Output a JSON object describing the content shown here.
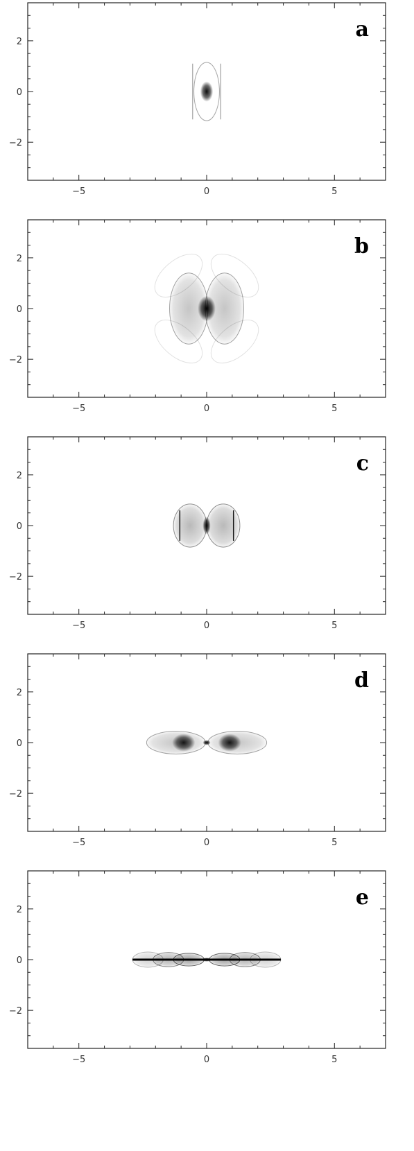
{
  "chart_data": [
    {
      "type": "scatter",
      "panel_label": "a",
      "xlim": [
        -7,
        7
      ],
      "ylim": [
        -3.5,
        3.5
      ],
      "xticks": [
        -5,
        0,
        5
      ],
      "yticks": [
        2,
        0,
        -2
      ],
      "xtick_labels": [
        "−5",
        "0",
        "5"
      ],
      "ytick_labels": [
        "2",
        "0",
        "−2"
      ],
      "grid": false,
      "features": [
        {
          "kind": "outline",
          "cx": 0,
          "cy": 0,
          "rx": 0.5,
          "ry": 1.15,
          "intensity": 0.35
        },
        {
          "kind": "bar",
          "x": -0.55,
          "y0": -1.1,
          "y1": 1.1,
          "intensity": 0.3
        },
        {
          "kind": "bar",
          "x": 0.55,
          "y0": -1.1,
          "y1": 1.1,
          "intensity": 0.3
        },
        {
          "kind": "blob",
          "cx": 0,
          "cy": 0,
          "rx": 0.25,
          "ry": 0.4,
          "intensity": 0.95
        }
      ]
    },
    {
      "type": "scatter",
      "panel_label": "b",
      "xlim": [
        -7,
        7
      ],
      "ylim": [
        -3.5,
        3.5
      ],
      "xticks": [
        -5,
        0,
        5
      ],
      "yticks": [
        2,
        0,
        -2
      ],
      "xtick_labels": [
        "−5",
        "0",
        "5"
      ],
      "ytick_labels": [
        "2",
        "0",
        "−2"
      ],
      "grid": false,
      "features": [
        {
          "kind": "wing",
          "cx": -1.1,
          "cy": 1.3,
          "rx": 1.1,
          "ry": 0.6,
          "angle": -40,
          "intensity": 0.12
        },
        {
          "kind": "wing",
          "cx": 1.1,
          "cy": 1.3,
          "rx": 1.1,
          "ry": 0.6,
          "angle": 40,
          "intensity": 0.12
        },
        {
          "kind": "wing",
          "cx": -1.1,
          "cy": -1.3,
          "rx": 1.1,
          "ry": 0.6,
          "angle": 40,
          "intensity": 0.12
        },
        {
          "kind": "wing",
          "cx": 1.1,
          "cy": -1.3,
          "rx": 1.1,
          "ry": 0.6,
          "angle": -40,
          "intensity": 0.12
        },
        {
          "kind": "lobe",
          "cx": -0.7,
          "cy": 0,
          "rx": 0.75,
          "ry": 1.4,
          "intensity": 0.45
        },
        {
          "kind": "lobe",
          "cx": 0.7,
          "cy": 0,
          "rx": 0.75,
          "ry": 1.4,
          "intensity": 0.45
        },
        {
          "kind": "blob",
          "cx": 0,
          "cy": 0,
          "rx": 0.35,
          "ry": 0.5,
          "intensity": 1.0
        }
      ]
    },
    {
      "type": "scatter",
      "panel_label": "c",
      "xlim": [
        -7,
        7
      ],
      "ylim": [
        -3.5,
        3.5
      ],
      "xticks": [
        -5,
        0,
        5
      ],
      "yticks": [
        2,
        0,
        -2
      ],
      "xtick_labels": [
        "−5",
        "0",
        "5"
      ],
      "ytick_labels": [
        "2",
        "0",
        "−2"
      ],
      "grid": false,
      "features": [
        {
          "kind": "lobe",
          "cx": -0.65,
          "cy": 0,
          "rx": 0.65,
          "ry": 0.85,
          "intensity": 0.55
        },
        {
          "kind": "lobe",
          "cx": 0.65,
          "cy": 0,
          "rx": 0.65,
          "ry": 0.85,
          "intensity": 0.55
        },
        {
          "kind": "bar",
          "x": -1.05,
          "y0": -0.6,
          "y1": 0.6,
          "intensity": 0.9
        },
        {
          "kind": "bar",
          "x": 1.05,
          "y0": -0.6,
          "y1": 0.6,
          "intensity": 0.9
        },
        {
          "kind": "blob",
          "cx": 0,
          "cy": 0,
          "rx": 0.15,
          "ry": 0.35,
          "intensity": 1.0
        }
      ]
    },
    {
      "type": "scatter",
      "panel_label": "d",
      "xlim": [
        -7,
        7
      ],
      "ylim": [
        -3.5,
        3.5
      ],
      "xticks": [
        -5,
        0,
        5
      ],
      "yticks": [
        2,
        0,
        -2
      ],
      "xtick_labels": [
        "−5",
        "0",
        "5"
      ],
      "ytick_labels": [
        "2",
        "0",
        "−2"
      ],
      "grid": false,
      "features": [
        {
          "kind": "lobe",
          "cx": -1.2,
          "cy": 0,
          "rx": 1.15,
          "ry": 0.45,
          "intensity": 0.45
        },
        {
          "kind": "lobe",
          "cx": 1.2,
          "cy": 0,
          "rx": 1.15,
          "ry": 0.45,
          "intensity": 0.45
        },
        {
          "kind": "blob",
          "cx": -0.9,
          "cy": 0,
          "rx": 0.45,
          "ry": 0.35,
          "intensity": 0.9
        },
        {
          "kind": "blob",
          "cx": 0.9,
          "cy": 0,
          "rx": 0.45,
          "ry": 0.35,
          "intensity": 0.9
        },
        {
          "kind": "blob",
          "cx": 0,
          "cy": 0,
          "rx": 0.15,
          "ry": 0.1,
          "intensity": 1.0
        }
      ]
    },
    {
      "type": "scatter",
      "panel_label": "e",
      "xlim": [
        -7,
        7
      ],
      "ylim": [
        -3.5,
        3.5
      ],
      "xticks": [
        -5,
        0,
        5
      ],
      "yticks": [
        2,
        0,
        -2
      ],
      "xtick_labels": [
        "−5",
        "0",
        "5"
      ],
      "ytick_labels": [
        "2",
        "0",
        "−2"
      ],
      "grid": false,
      "features": [
        {
          "kind": "lobe",
          "cx": -2.3,
          "cy": 0,
          "rx": 0.6,
          "ry": 0.3,
          "intensity": 0.35
        },
        {
          "kind": "lobe",
          "cx": -1.5,
          "cy": 0,
          "rx": 0.6,
          "ry": 0.28,
          "intensity": 0.6
        },
        {
          "kind": "lobe",
          "cx": -0.7,
          "cy": 0,
          "rx": 0.6,
          "ry": 0.25,
          "intensity": 0.75
        },
        {
          "kind": "lobe",
          "cx": 0.7,
          "cy": 0,
          "rx": 0.6,
          "ry": 0.25,
          "intensity": 0.75
        },
        {
          "kind": "lobe",
          "cx": 1.5,
          "cy": 0,
          "rx": 0.6,
          "ry": 0.28,
          "intensity": 0.6
        },
        {
          "kind": "lobe",
          "cx": 2.3,
          "cy": 0,
          "rx": 0.6,
          "ry": 0.3,
          "intensity": 0.35
        },
        {
          "kind": "line",
          "x0": -2.9,
          "x1": 2.9,
          "y": 0,
          "intensity": 1.0
        },
        {
          "kind": "blob",
          "cx": 0,
          "cy": 0,
          "rx": 0.2,
          "ry": 0.08,
          "intensity": 1.0
        }
      ]
    }
  ]
}
